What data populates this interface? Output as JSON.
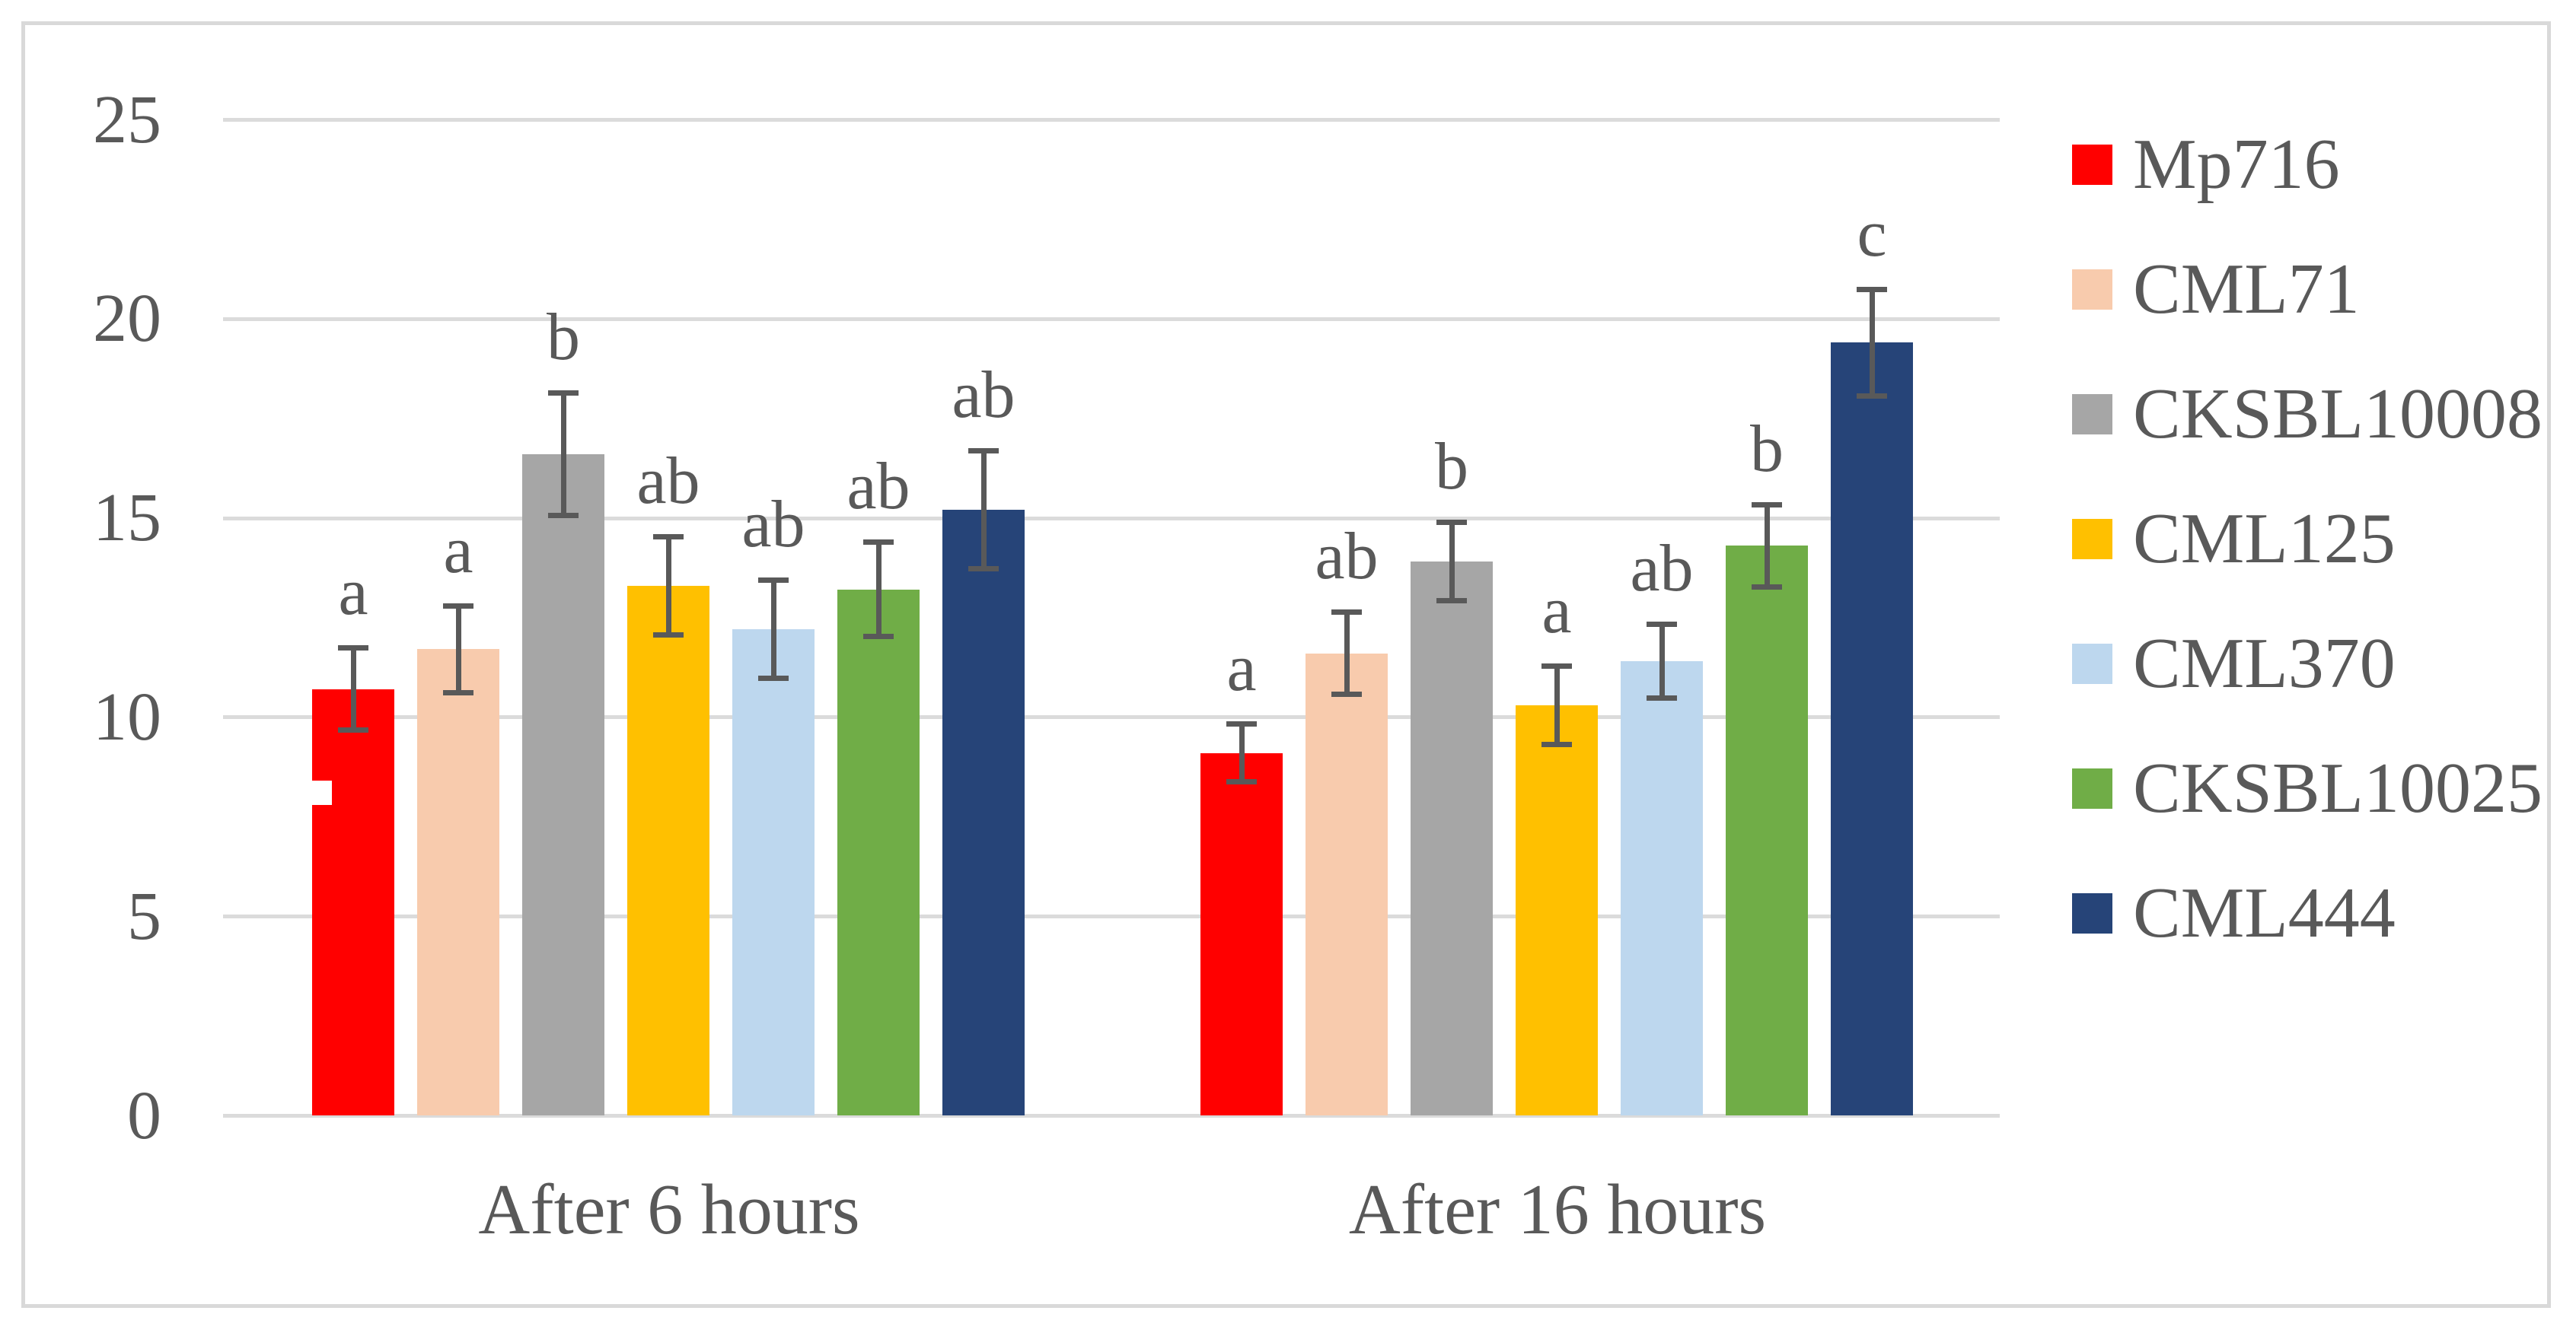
{
  "figure": {
    "background_color": "#ffffff",
    "frame_border_color": "#d9d9d9",
    "gridline_color": "#dbdbdb",
    "axis_text_color": "#595959",
    "error_bar_color": "#595959",
    "significance_letter_color": "#595959"
  },
  "chart_data": {
    "type": "bar",
    "title": "",
    "xlabel": "",
    "ylabel": "",
    "categories": [
      "After 6 hours",
      "After 16 hours"
    ],
    "yticks": [
      0,
      5,
      10,
      15,
      20,
      25
    ],
    "ytick_labels": [
      "0",
      "5",
      "10",
      "15",
      "20",
      "25"
    ],
    "ylim": [
      0,
      25
    ],
    "grid": true,
    "legend_position": "right",
    "error_bars": true,
    "series": [
      {
        "name": "Mp716",
        "color": "#ff0000",
        "values": [
          10.7,
          9.1
        ],
        "errors": [
          1.1,
          0.8
        ],
        "letters": [
          "a",
          "a"
        ]
      },
      {
        "name": "CML71",
        "color": "#f8cbad",
        "values": [
          11.7,
          11.6
        ],
        "errors": [
          1.15,
          1.1
        ],
        "letters": [
          "a",
          "ab"
        ]
      },
      {
        "name": "CKSBL10008",
        "color": "#a6a6a6",
        "values": [
          16.6,
          13.9
        ],
        "errors": [
          1.6,
          1.05
        ],
        "letters": [
          "b",
          "b"
        ]
      },
      {
        "name": "CML125",
        "color": "#ffc000",
        "values": [
          13.3,
          10.3
        ],
        "errors": [
          1.3,
          1.05
        ],
        "letters": [
          "ab",
          "a"
        ]
      },
      {
        "name": "CML370",
        "color": "#bdd7ee",
        "values": [
          12.2,
          11.4
        ],
        "errors": [
          1.3,
          1.0
        ],
        "letters": [
          "ab",
          "ab"
        ]
      },
      {
        "name": "CKSBL10025",
        "color": "#70ad47",
        "values": [
          13.2,
          14.3
        ],
        "errors": [
          1.25,
          1.1
        ],
        "letters": [
          "ab",
          "b"
        ]
      },
      {
        "name": "CML444",
        "color": "#264478",
        "values": [
          15.2,
          19.4
        ],
        "errors": [
          1.55,
          1.4
        ],
        "letters": [
          "ab",
          "c"
        ]
      }
    ],
    "artifacts": [
      {
        "name": "white-notch",
        "description": "small white rectangular notch cut into the left edge of the first red bar",
        "category": "After 6 hours",
        "series": "Mp716",
        "value_range": [
          7.8,
          8.4
        ]
      }
    ]
  }
}
